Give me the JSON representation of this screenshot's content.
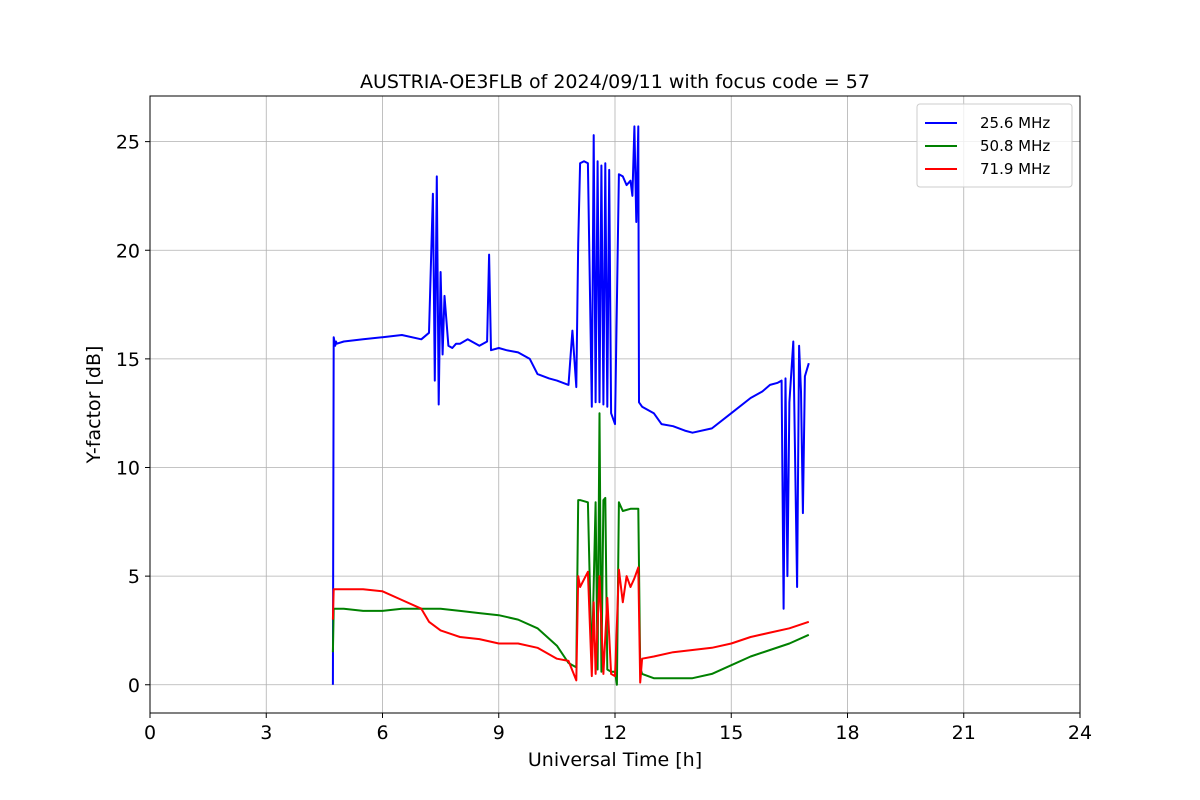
{
  "chart_data": {
    "type": "line",
    "title": "AUSTRIA-OE3FLB of 2024/09/11 with focus code = 57",
    "xlabel": "Universal Time [h]",
    "ylabel": "Y-factor [dB]",
    "xlim": [
      0,
      24
    ],
    "ylim": [
      -1.3,
      27.1
    ],
    "xticks": [
      0,
      3,
      6,
      9,
      12,
      15,
      18,
      21,
      24
    ],
    "yticks": [
      0,
      5,
      10,
      15,
      20,
      25
    ],
    "grid": true,
    "legend_position": "top-right",
    "series": [
      {
        "name": "25.6 MHz",
        "color": "#0000ff",
        "x": [
          4.72,
          4.74,
          4.78,
          4.8,
          4.82,
          5.0,
          5.5,
          6.0,
          6.5,
          7.0,
          7.2,
          7.3,
          7.35,
          7.4,
          7.45,
          7.5,
          7.55,
          7.6,
          7.7,
          7.8,
          7.9,
          8.0,
          8.2,
          8.5,
          8.7,
          8.75,
          8.8,
          9.0,
          9.2,
          9.5,
          9.8,
          10.0,
          10.3,
          10.5,
          10.8,
          10.9,
          11.0,
          11.05,
          11.1,
          11.2,
          11.3,
          11.4,
          11.45,
          11.5,
          11.55,
          11.6,
          11.65,
          11.7,
          11.75,
          11.8,
          11.85,
          11.9,
          12.0,
          12.1,
          12.2,
          12.3,
          12.4,
          12.45,
          12.5,
          12.55,
          12.6,
          12.62,
          12.7,
          13.0,
          13.2,
          13.5,
          13.8,
          14.0,
          14.5,
          15.0,
          15.5,
          15.8,
          16.0,
          16.2,
          16.3,
          16.35,
          16.4,
          16.45,
          16.5,
          16.6,
          16.7,
          16.75,
          16.8,
          16.85,
          16.9,
          17.0
        ],
        "values": [
          0.0,
          16.0,
          15.6,
          15.8,
          15.7,
          15.8,
          15.9,
          16.0,
          16.1,
          15.9,
          16.2,
          22.6,
          14.0,
          23.4,
          12.9,
          19.0,
          15.2,
          17.9,
          15.6,
          15.5,
          15.7,
          15.7,
          15.9,
          15.6,
          15.8,
          19.8,
          15.4,
          15.5,
          15.4,
          15.3,
          15.0,
          14.3,
          14.1,
          14.0,
          13.8,
          16.3,
          13.7,
          20.3,
          24.0,
          24.1,
          24.0,
          12.8,
          25.3,
          13.0,
          24.1,
          13.0,
          23.9,
          12.9,
          24.0,
          12.8,
          23.7,
          12.5,
          12.0,
          23.5,
          23.4,
          23.0,
          23.2,
          22.5,
          25.7,
          21.3,
          25.7,
          13.0,
          12.8,
          12.5,
          12.0,
          11.9,
          11.7,
          11.6,
          11.8,
          12.5,
          13.2,
          13.5,
          13.8,
          13.9,
          14.0,
          3.5,
          14.1,
          5.0,
          13.0,
          15.8,
          4.5,
          15.6,
          13.5,
          7.9,
          14.2,
          14.8
        ]
      },
      {
        "name": "50.8 MHz",
        "color": "#008000",
        "x": [
          4.72,
          4.74,
          4.8,
          5.0,
          5.5,
          6.0,
          6.5,
          7.0,
          7.5,
          8.0,
          8.5,
          9.0,
          9.5,
          10.0,
          10.5,
          10.8,
          11.0,
          11.05,
          11.1,
          11.3,
          11.4,
          11.5,
          11.55,
          11.6,
          11.65,
          11.7,
          11.75,
          11.8,
          11.9,
          12.0,
          12.05,
          12.1,
          12.2,
          12.4,
          12.6,
          12.65,
          12.7,
          13.0,
          13.5,
          14.0,
          14.5,
          15.0,
          15.5,
          16.0,
          16.5,
          17.0
        ],
        "values": [
          1.5,
          3.5,
          3.5,
          3.5,
          3.4,
          3.4,
          3.5,
          3.5,
          3.5,
          3.4,
          3.3,
          3.2,
          3.0,
          2.6,
          1.8,
          1.0,
          0.8,
          8.5,
          8.5,
          8.4,
          0.8,
          8.4,
          0.7,
          12.5,
          0.6,
          8.5,
          8.6,
          0.7,
          0.6,
          0.6,
          0.0,
          8.4,
          8.0,
          8.1,
          8.1,
          0.8,
          0.5,
          0.3,
          0.3,
          0.3,
          0.5,
          0.9,
          1.3,
          1.6,
          1.9,
          2.3
        ]
      },
      {
        "name": "71.9 MHz",
        "color": "#ff0000",
        "x": [
          4.72,
          4.74,
          4.8,
          5.0,
          5.5,
          6.0,
          6.5,
          7.0,
          7.2,
          7.5,
          8.0,
          8.5,
          9.0,
          9.5,
          10.0,
          10.5,
          10.8,
          11.0,
          11.05,
          11.1,
          11.3,
          11.4,
          11.45,
          11.5,
          11.6,
          11.7,
          11.8,
          11.9,
          12.0,
          12.1,
          12.2,
          12.3,
          12.4,
          12.5,
          12.6,
          12.65,
          12.7,
          13.0,
          13.5,
          14.0,
          14.5,
          15.0,
          15.5,
          16.0,
          16.5,
          17.0
        ],
        "values": [
          3.0,
          4.4,
          4.4,
          4.4,
          4.4,
          4.3,
          3.9,
          3.5,
          2.9,
          2.5,
          2.2,
          2.1,
          1.9,
          1.9,
          1.7,
          1.2,
          1.1,
          0.2,
          5.0,
          4.5,
          5.2,
          0.4,
          3.8,
          0.5,
          5.0,
          0.5,
          4.0,
          0.5,
          0.4,
          5.3,
          3.8,
          5.0,
          4.5,
          4.9,
          5.4,
          0.1,
          1.2,
          1.3,
          1.5,
          1.6,
          1.7,
          1.9,
          2.2,
          2.4,
          2.6,
          2.9
        ]
      }
    ]
  }
}
